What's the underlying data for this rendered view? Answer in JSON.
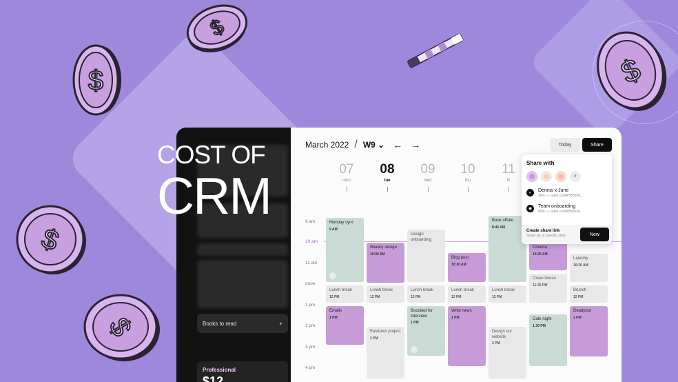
{
  "headline": {
    "line1": "COST OF",
    "line2": "CRM"
  },
  "sidebar": {
    "books_label": "Books to read",
    "books_add": "+",
    "plan_label": "Professional",
    "plan_price": "$12"
  },
  "calendar": {
    "month": "March 2022",
    "separator": "/",
    "week": "W9",
    "week_caret": "⌄",
    "prev": "←",
    "next": "→",
    "today_label": "Today",
    "share_label": "Share",
    "days": [
      {
        "num": "07",
        "name": "mon"
      },
      {
        "num": "08",
        "name": "tue"
      },
      {
        "num": "09",
        "name": "wed"
      },
      {
        "num": "10",
        "name": "thu"
      },
      {
        "num": "11",
        "name": "fri"
      }
    ],
    "times": [
      "9 am",
      "10 am",
      "11 am",
      "noon",
      "1 pm",
      "2 pm",
      "3 pm",
      "4 pm"
    ],
    "events": [
      {
        "title": "Monday sync",
        "time": "9 AM"
      },
      {
        "title": "Weekly design",
        "time": "10:00 AM"
      },
      {
        "title": "Design onboarding",
        "time": ""
      },
      {
        "title": "Blog post",
        "time": "10:30 AM"
      },
      {
        "title": "Book offsite",
        "time": "8:45 AM"
      },
      {
        "title": "Cinema",
        "time": "10:30 AM"
      },
      {
        "title": "Laundry",
        "time": "10:30 AM"
      },
      {
        "title": "Clean house",
        "time": "11:30 PM"
      },
      {
        "title": "Lunch break",
        "time": "12 PM"
      },
      {
        "title": "Lunch break",
        "time": "12 PM"
      },
      {
        "title": "Lunch break",
        "time": "12 PM"
      },
      {
        "title": "Lunch break",
        "time": "12 PM"
      },
      {
        "title": "Lunch break",
        "time": "12 PM"
      },
      {
        "title": "Brunch",
        "time": "12 PM"
      },
      {
        "title": "Emails",
        "time": "1 PM"
      },
      {
        "title": "Boocked for interview",
        "time": "1 PM"
      },
      {
        "title": "Write news",
        "time": "1 PM"
      },
      {
        "title": "Date night",
        "time": "1:30 PM"
      },
      {
        "title": "Deadpool",
        "time": "1 PM"
      },
      {
        "title": "Easttown project",
        "time": "2 PM"
      },
      {
        "title": "Design our website",
        "time": "2 PM"
      }
    ]
  },
  "share_popup": {
    "title": "Share with",
    "search_icon": "⌕",
    "items": [
      {
        "name": "Dennis x June",
        "sub": "30m — calen.co/d4f565656..."
      },
      {
        "name": "Team onboarding",
        "sub": "60m — calen.co/d4f565656..."
      }
    ],
    "create_title": "Create share link",
    "create_sub": "Share all, or specific slots",
    "new_label": "New"
  },
  "colors": {
    "background": "#9d88dc",
    "event_purple": "#c79bd8",
    "event_green": "#c9dbd4",
    "event_grey": "#e8e8e8"
  }
}
